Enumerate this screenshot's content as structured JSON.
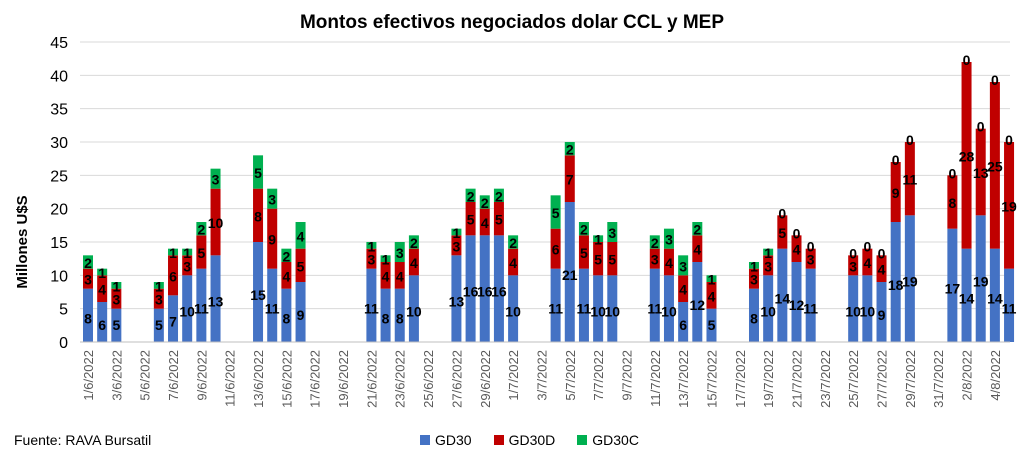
{
  "chart_data": {
    "type": "bar",
    "stacked": true,
    "title": "Montos efectivos negociados dolar CCL y MEP",
    "ylabel": "Millones U$S",
    "xlabel": "",
    "ylim": [
      0,
      45
    ],
    "yticks": [
      0,
      5,
      10,
      15,
      20,
      25,
      30,
      35,
      40,
      45
    ],
    "grid": true,
    "legend_position": "bottom",
    "date_range": [
      "1/6/2022",
      "5/8/2022"
    ],
    "x_tick_labels": [
      "1/6/2022",
      "3/6/2022",
      "5/6/2022",
      "7/6/2022",
      "9/6/2022",
      "11/6/2022",
      "13/6/2022",
      "15/6/2022",
      "17/6/2022",
      "19/6/2022",
      "21/6/2022",
      "23/6/2022",
      "25/6/2022",
      "27/6/2022",
      "29/6/2022",
      "1/7/2022",
      "3/7/2022",
      "5/7/2022",
      "7/7/2022",
      "9/7/2022",
      "11/7/2022",
      "13/7/2022",
      "15/7/2022",
      "17/7/2022",
      "19/7/2022",
      "21/7/2022",
      "23/7/2022",
      "25/7/2022",
      "27/7/2022",
      "29/7/2022",
      "31/7/2022",
      "2/8/2022",
      "4/8/2022"
    ],
    "series_names": [
      "GD30",
      "GD30D",
      "GD30C"
    ],
    "colors": [
      "#4472C4",
      "#C00000",
      "#00B050"
    ],
    "bars": [
      {
        "date": "1/6/2022",
        "values": [
          8,
          3,
          2
        ]
      },
      {
        "date": "2/6/2022",
        "values": [
          6,
          4,
          1
        ]
      },
      {
        "date": "3/6/2022",
        "values": [
          5,
          3,
          1
        ]
      },
      {
        "date": "6/6/2022",
        "values": [
          5,
          3,
          1
        ]
      },
      {
        "date": "7/6/2022",
        "values": [
          7,
          6,
          1
        ]
      },
      {
        "date": "8/6/2022",
        "values": [
          10,
          3,
          1
        ]
      },
      {
        "date": "9/6/2022",
        "values": [
          11,
          5,
          2
        ]
      },
      {
        "date": "10/6/2022",
        "values": [
          13,
          10,
          3
        ]
      },
      {
        "date": "13/6/2022",
        "values": [
          15,
          8,
          5
        ]
      },
      {
        "date": "14/6/2022",
        "values": [
          11,
          9,
          3
        ]
      },
      {
        "date": "15/6/2022",
        "values": [
          8,
          4,
          2
        ]
      },
      {
        "date": "16/6/2022",
        "values": [
          9,
          5,
          4
        ]
      },
      {
        "date": "21/6/2022",
        "values": [
          11,
          3,
          1
        ]
      },
      {
        "date": "22/6/2022",
        "values": [
          8,
          4,
          1
        ]
      },
      {
        "date": "23/6/2022",
        "values": [
          8,
          4,
          3
        ]
      },
      {
        "date": "24/6/2022",
        "values": [
          10,
          4,
          2
        ]
      },
      {
        "date": "27/6/2022",
        "values": [
          13,
          3,
          1
        ]
      },
      {
        "date": "28/6/2022",
        "values": [
          16,
          5,
          2
        ]
      },
      {
        "date": "29/6/2022",
        "values": [
          16,
          4,
          2
        ]
      },
      {
        "date": "30/6/2022",
        "values": [
          16,
          5,
          2
        ]
      },
      {
        "date": "1/7/2022",
        "values": [
          10,
          4,
          2
        ]
      },
      {
        "date": "4/7/2022",
        "values": [
          11,
          6,
          5
        ]
      },
      {
        "date": "5/7/2022",
        "values": [
          21,
          7,
          2
        ]
      },
      {
        "date": "6/7/2022",
        "values": [
          11,
          5,
          2
        ]
      },
      {
        "date": "7/7/2022",
        "values": [
          10,
          5,
          1
        ]
      },
      {
        "date": "8/7/2022",
        "values": [
          10,
          5,
          3
        ]
      },
      {
        "date": "11/7/2022",
        "values": [
          11,
          3,
          2
        ]
      },
      {
        "date": "12/7/2022",
        "values": [
          10,
          4,
          3
        ]
      },
      {
        "date": "13/7/2022",
        "values": [
          6,
          4,
          3
        ]
      },
      {
        "date": "14/7/2022",
        "values": [
          12,
          4,
          2
        ]
      },
      {
        "date": "15/7/2022",
        "values": [
          5,
          4,
          1
        ]
      },
      {
        "date": "18/7/2022",
        "values": [
          8,
          3,
          1
        ]
      },
      {
        "date": "19/7/2022",
        "values": [
          10,
          3,
          1
        ]
      },
      {
        "date": "20/7/2022",
        "values": [
          14,
          5,
          0
        ]
      },
      {
        "date": "21/7/2022",
        "values": [
          12,
          4,
          0
        ]
      },
      {
        "date": "22/7/2022",
        "values": [
          11,
          3,
          0
        ]
      },
      {
        "date": "25/7/2022",
        "values": [
          10,
          3,
          0
        ]
      },
      {
        "date": "26/7/2022",
        "values": [
          10,
          4,
          0
        ]
      },
      {
        "date": "27/7/2022",
        "values": [
          9,
          4,
          0
        ]
      },
      {
        "date": "28/7/2022",
        "values": [
          18,
          9,
          0
        ]
      },
      {
        "date": "29/7/2022",
        "values": [
          19,
          11,
          0
        ]
      },
      {
        "date": "1/8/2022",
        "values": [
          17,
          8,
          0
        ]
      },
      {
        "date": "2/8/2022",
        "values": [
          14,
          28,
          0
        ]
      },
      {
        "date": "3/8/2022",
        "values": [
          19,
          13,
          0
        ]
      },
      {
        "date": "4/8/2022",
        "values": [
          14,
          25,
          0
        ]
      },
      {
        "date": "5/8/2022",
        "values": [
          11,
          19,
          0
        ]
      }
    ]
  },
  "source": "Fuente: RAVA Bursatil"
}
